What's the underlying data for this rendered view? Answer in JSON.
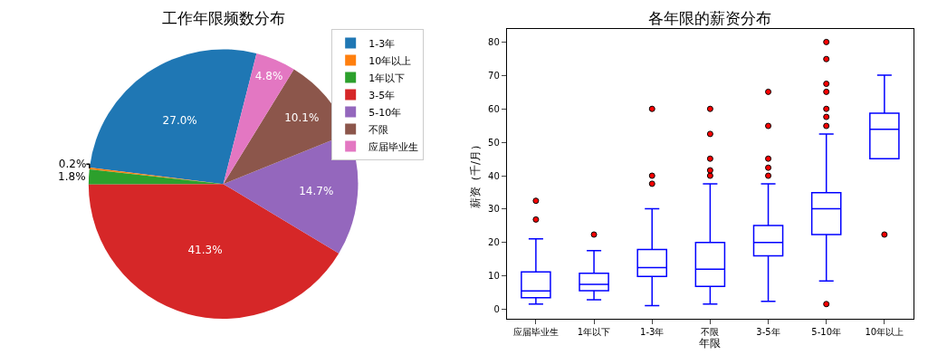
{
  "chart_data": [
    {
      "type": "pie",
      "title": "工作年限频数分布",
      "categories": [
        "1-3年",
        "10年以上",
        "1年以下",
        "3-5年",
        "5-10年",
        "不限",
        "应届毕业生"
      ],
      "values": [
        27.0,
        0.2,
        1.8,
        41.3,
        14.7,
        10.1,
        4.8
      ],
      "value_labels": [
        "27.0%",
        "0.2%",
        "1.8%",
        "41.3%",
        "14.7%",
        "10.1%",
        "4.8%"
      ],
      "colors": [
        "#1f77b4",
        "#ff7f0e",
        "#2ca02c",
        "#d62728",
        "#9467bd",
        "#8c564b",
        "#e377c2"
      ],
      "legend": "top right"
    },
    {
      "type": "box",
      "title": "各年限的薪资分布",
      "xlabel": "年限",
      "ylabel": "薪资（千/月）",
      "categories": [
        "应届毕业生",
        "1年以下",
        "1-3年",
        "不限",
        "3-5年",
        "5-10年",
        "10年以上"
      ],
      "ylim": [
        -2.8,
        83.9
      ],
      "yticks": [
        0,
        10,
        20,
        30,
        40,
        50,
        60,
        70,
        80
      ],
      "series": [
        {
          "color": "#0000ff",
          "boxes": [
            {
              "low": 1.6,
              "q1": 3.5,
              "median": 5.5,
              "q3": 11.2,
              "high": 21.1,
              "outliers": [
                26.9,
                32.5
              ]
            },
            {
              "low": 2.9,
              "q1": 5.6,
              "median": 7.5,
              "q3": 10.8,
              "high": 17.6,
              "outliers": [
                22.4
              ]
            },
            {
              "low": 1.1,
              "q1": 9.9,
              "median": 12.5,
              "q3": 17.9,
              "high": 30.1,
              "outliers": [
                37.6,
                40,
                60
              ]
            },
            {
              "low": 1.6,
              "q1": 6.9,
              "median": 12.0,
              "q3": 20.0,
              "high": 37.6,
              "outliers": [
                40,
                41.6,
                45.1,
                52.5,
                60
              ]
            },
            {
              "low": 2.4,
              "q1": 16.0,
              "median": 20.0,
              "q3": 25.1,
              "high": 37.6,
              "outliers": [
                40,
                42.4,
                45.1,
                54.9,
                65.1
              ]
            },
            {
              "low": 8.5,
              "q1": 22.4,
              "median": 30.1,
              "q3": 34.9,
              "high": 52.5,
              "outliers": [
                1.6,
                54.9,
                57.6,
                60,
                65.1,
                67.5,
                74.9,
                80
              ]
            },
            {
              "low": 45.1,
              "q1": 45.1,
              "median": 53.9,
              "q3": 58.7,
              "high": 70.1,
              "outliers": [
                22.4
              ]
            }
          ]
        }
      ]
    }
  ]
}
